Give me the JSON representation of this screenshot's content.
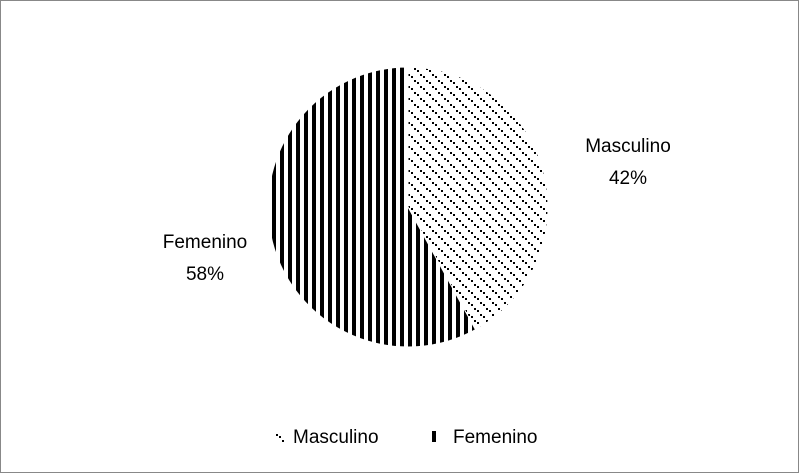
{
  "chart_data": {
    "type": "pie",
    "categories": [
      "Masculino",
      "Femenino"
    ],
    "values": [
      42,
      58
    ],
    "value_labels": [
      "42%",
      "58%"
    ],
    "colors": [
      "#000000",
      "#000000"
    ]
  }
}
